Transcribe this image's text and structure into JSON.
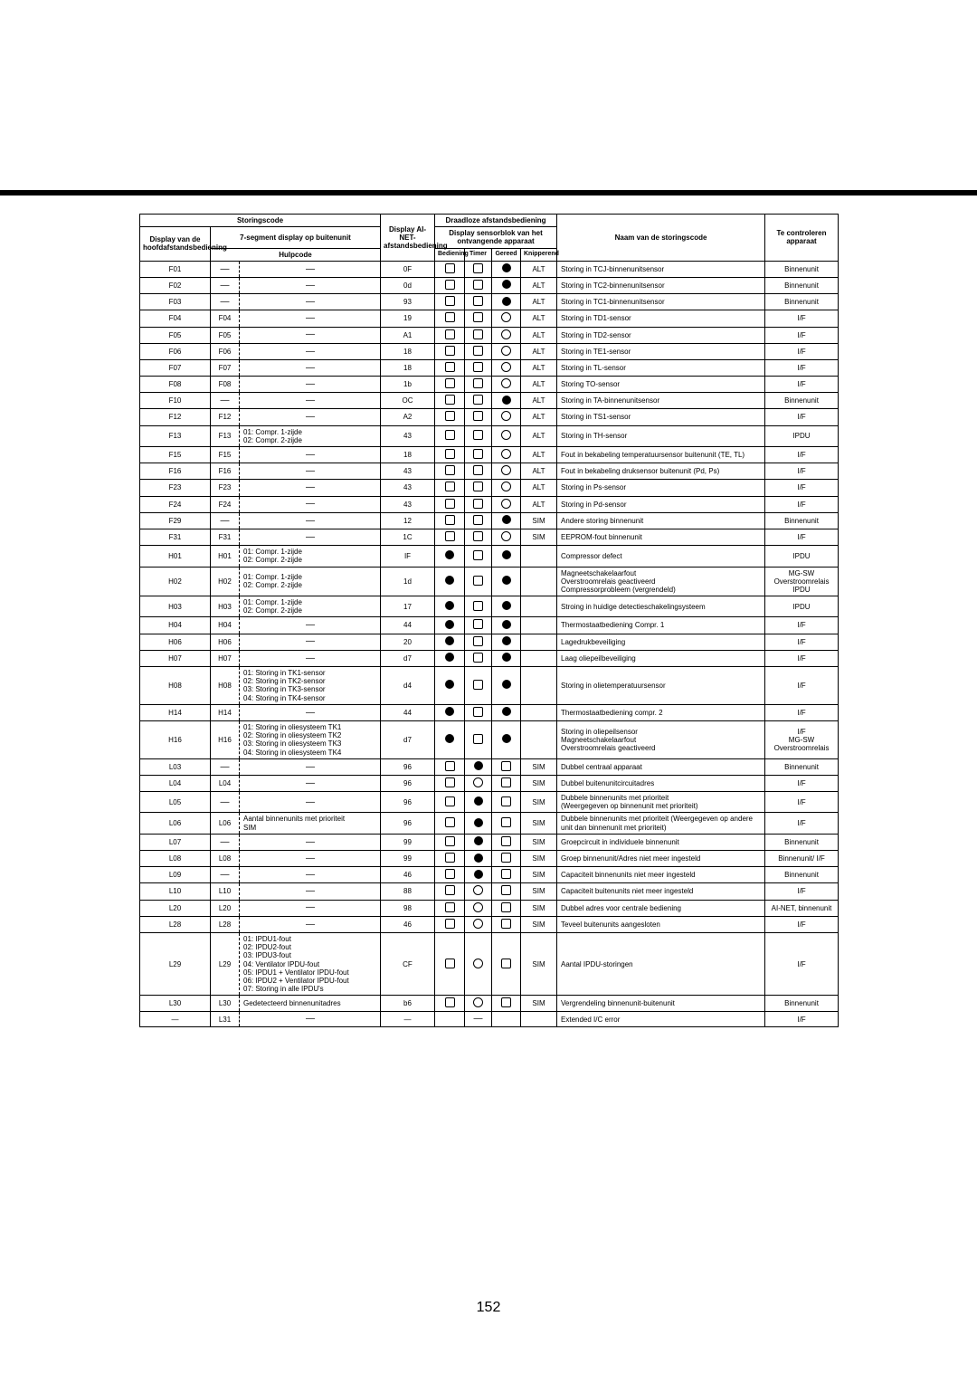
{
  "page_number": "152",
  "headers": {
    "storingscode": "Storingscode",
    "draadloze": "Draadloze afstandsbediening",
    "display_hoofd": "Display van de\nhoofdafstandsbediening",
    "seg7": "7-segment display op buitenunit",
    "ainet": "Display AI-NET-\nafstandsbediening",
    "sensorblok": "Display sensorblok van het\nontvangende apparaat",
    "naam": "Naam van de storingscode",
    "controleren": "Te controleren\napparaat",
    "hulpcode": "Hulpcode",
    "bediening": "Bediening",
    "timer": "Timer",
    "gereed": "Gereed",
    "knipperend": "Knipperend"
  },
  "rows": [
    {
      "c": "F01",
      "s": "—",
      "h": "—",
      "a": "0F",
      "b": "sq",
      "t": "sq",
      "g": "cf",
      "k": "ALT",
      "n": "Storing in TCJ-binnenunitsensor",
      "d": "Binnenunit"
    },
    {
      "c": "F02",
      "s": "—",
      "h": "—",
      "a": "0d",
      "b": "sq",
      "t": "sq",
      "g": "cf",
      "k": "ALT",
      "n": "Storing in TC2-binnenunitsensor",
      "d": "Binnenunit"
    },
    {
      "c": "F03",
      "s": "—",
      "h": "—",
      "a": "93",
      "b": "sq",
      "t": "sq",
      "g": "cf",
      "k": "ALT",
      "n": "Storing in TC1-binnenunitsensor",
      "d": "Binnenunit"
    },
    {
      "c": "F04",
      "s": "F04",
      "h": "—",
      "a": "19",
      "b": "sq",
      "t": "sq",
      "g": "co",
      "k": "ALT",
      "n": "Storing in TD1-sensor",
      "d": "I/F"
    },
    {
      "c": "F05",
      "s": "F05",
      "h": "—",
      "a": "A1",
      "b": "sq",
      "t": "sq",
      "g": "co",
      "k": "ALT",
      "n": "Storing in TD2-sensor",
      "d": "I/F"
    },
    {
      "c": "F06",
      "s": "F06",
      "h": "—",
      "a": "18",
      "b": "sq",
      "t": "sq",
      "g": "co",
      "k": "ALT",
      "n": "Storing in TE1-sensor",
      "d": "I/F"
    },
    {
      "c": "F07",
      "s": "F07",
      "h": "—",
      "a": "18",
      "b": "sq",
      "t": "sq",
      "g": "co",
      "k": "ALT",
      "n": "Storing in TL-sensor",
      "d": "I/F"
    },
    {
      "c": "F08",
      "s": "F08",
      "h": "—",
      "a": "1b",
      "b": "sq",
      "t": "sq",
      "g": "co",
      "k": "ALT",
      "n": "Storing TO-sensor",
      "d": "I/F"
    },
    {
      "c": "F10",
      "s": "—",
      "h": "—",
      "a": "OC",
      "b": "sq",
      "t": "sq",
      "g": "cf",
      "k": "ALT",
      "n": "Storing in TA-binnenunitsensor",
      "d": "Binnenunit"
    },
    {
      "c": "F12",
      "s": "F12",
      "h": "—",
      "a": "A2",
      "b": "sq",
      "t": "sq",
      "g": "co",
      "k": "ALT",
      "n": "Storing in TS1-sensor",
      "d": "I/F"
    },
    {
      "c": "F13",
      "s": "F13",
      "h": "01: Compr. 1-zijde\n02: Compr. 2-zijde",
      "a": "43",
      "b": "sq",
      "t": "sq",
      "g": "co",
      "k": "ALT",
      "n": "Storing in TH-sensor",
      "d": "IPDU"
    },
    {
      "c": "F15",
      "s": "F15",
      "h": "—",
      "a": "18",
      "b": "sq",
      "t": "sq",
      "g": "co",
      "k": "ALT",
      "n": "Fout in bekabeling temperatuursensor buitenunit (TE, TL)",
      "d": "I/F"
    },
    {
      "c": "F16",
      "s": "F16",
      "h": "—",
      "a": "43",
      "b": "sq",
      "t": "sq",
      "g": "co",
      "k": "ALT",
      "n": "Fout in bekabeling druksensor buitenunit (Pd, Ps)",
      "d": "I/F"
    },
    {
      "c": "F23",
      "s": "F23",
      "h": "—",
      "a": "43",
      "b": "sq",
      "t": "sq",
      "g": "co",
      "k": "ALT",
      "n": "Storing in Ps-sensor",
      "d": "I/F"
    },
    {
      "c": "F24",
      "s": "F24",
      "h": "—",
      "a": "43",
      "b": "sq",
      "t": "sq",
      "g": "co",
      "k": "ALT",
      "n": "Storing in Pd-sensor",
      "d": "I/F"
    },
    {
      "c": "F29",
      "s": "—",
      "h": "—",
      "a": "12",
      "b": "sq",
      "t": "sq",
      "g": "cf",
      "k": "SIM",
      "n": "Andere storing binnenunit",
      "d": "Binnenunit"
    },
    {
      "c": "F31",
      "s": "F31",
      "h": "—",
      "a": "1C",
      "b": "sq",
      "t": "sq",
      "g": "co",
      "k": "SIM",
      "n": "EEPROM-fout binnenunit",
      "d": "I/F"
    },
    {
      "c": "H01",
      "s": "H01",
      "h": "01: Compr. 1-zijde\n02: Compr. 2-zijde",
      "a": "IF",
      "b": "cf",
      "t": "sq",
      "g": "cf",
      "k": "",
      "n": "Compressor defect",
      "d": "IPDU"
    },
    {
      "c": "H02",
      "s": "H02",
      "h": "01: Compr. 1-zijde\n02: Compr. 2-zijde",
      "a": "1d",
      "b": "cf",
      "t": "sq",
      "g": "cf",
      "k": "",
      "n": "Magneetschakelaarfout\nOverstroomrelais geactiveerd\nCompressorprobleem (vergrendeld)",
      "d": "MG-SW\nOverstroomrelais\nIPDU"
    },
    {
      "c": "H03",
      "s": "H03",
      "h": "01: Compr. 1-zijde\n02: Compr. 2-zijde",
      "a": "17",
      "b": "cf",
      "t": "sq",
      "g": "cf",
      "k": "",
      "n": "Stroing in huidige detectieschakelingsysteem",
      "d": "IPDU"
    },
    {
      "c": "H04",
      "s": "H04",
      "h": "—",
      "a": "44",
      "b": "cf",
      "t": "sq",
      "g": "cf",
      "k": "",
      "n": "Thermostaatbediening Compr. 1",
      "d": "I/F"
    },
    {
      "c": "H06",
      "s": "H06",
      "h": "—",
      "a": "20",
      "b": "cf",
      "t": "sq",
      "g": "cf",
      "k": "",
      "n": "Lagedrukbeveiliging",
      "d": "I/F"
    },
    {
      "c": "H07",
      "s": "H07",
      "h": "—",
      "a": "d7",
      "b": "cf",
      "t": "sq",
      "g": "cf",
      "k": "",
      "n": "Laag oliepeilbeveiliging",
      "d": "I/F"
    },
    {
      "c": "H08",
      "s": "H08",
      "h": "01: Storing in TK1-sensor\n02: Storing in TK2-sensor\n03: Storing in TK3-sensor\n04: Storing in TK4-sensor",
      "a": "d4",
      "b": "cf",
      "t": "sq",
      "g": "cf",
      "k": "",
      "n": "Storing in olietemperatuursensor",
      "d": "I/F"
    },
    {
      "c": "H14",
      "s": "H14",
      "h": "—",
      "a": "44",
      "b": "cf",
      "t": "sq",
      "g": "cf",
      "k": "",
      "n": "Thermostaatbediening compr. 2",
      "d": "I/F"
    },
    {
      "c": "H16",
      "s": "H16",
      "h": "01: Storing in oliesysteem TK1\n02: Storing in oliesysteem TK2\n03: Storing in oliesysteem TK3\n04: Storing in oliesysteem TK4",
      "a": "d7",
      "b": "cf",
      "t": "sq",
      "g": "cf",
      "k": "",
      "n": "Storing in oliepeilsensor\nMagneetschakelaarfout\nOverstroomrelais geactiveerd",
      "d": "I/F\nMG-SW\nOverstroomrelais"
    },
    {
      "c": "L03",
      "s": "—",
      "h": "—",
      "a": "96",
      "b": "sq",
      "t": "cf",
      "g": "sq",
      "k": "SIM",
      "n": "Dubbel centraal apparaat",
      "d": "Binnenunit"
    },
    {
      "c": "L04",
      "s": "L04",
      "h": "—",
      "a": "96",
      "b": "sq",
      "t": "co",
      "g": "sq",
      "k": "SIM",
      "n": "Dubbel buitenunitcircuitadres",
      "d": "I/F"
    },
    {
      "c": "L05",
      "s": "—",
      "h": "—",
      "a": "96",
      "b": "sq",
      "t": "cf",
      "g": "sq",
      "k": "SIM",
      "n": "Dubbele binnenunits met prioriteit\n(Weergegeven op binnenunit met prioriteit)",
      "d": "I/F"
    },
    {
      "c": "L06",
      "s": "L06",
      "h": "Aantal binnenunits met prioriteit\nSIM",
      "a": "96",
      "b": "sq",
      "t": "cf",
      "g": "sq",
      "k": "SIM",
      "n": "Dubbele binnenunits met prioriteit (Weergegeven op andere unit dan binnenunit met prioriteit)",
      "d": "I/F"
    },
    {
      "c": "L07",
      "s": "—",
      "h": "—",
      "a": "99",
      "b": "sq",
      "t": "cf",
      "g": "sq",
      "k": "SIM",
      "n": "Groepcircuit in individuele binnenunit",
      "d": "Binnenunit"
    },
    {
      "c": "L08",
      "s": "L08",
      "h": "—",
      "a": "99",
      "b": "sq",
      "t": "cf",
      "g": "sq",
      "k": "SIM",
      "n": "Groep binnenunit/Adres niet meer ingesteld",
      "d": "Binnenunit/ I/F"
    },
    {
      "c": "L09",
      "s": "—",
      "h": "—",
      "a": "46",
      "b": "sq",
      "t": "cf",
      "g": "sq",
      "k": "SIM",
      "n": "Capaciteit binnenunits niet meer ingesteld",
      "d": "Binnenunit"
    },
    {
      "c": "L10",
      "s": "L10",
      "h": "—",
      "a": "88",
      "b": "sq",
      "t": "co",
      "g": "sq",
      "k": "SIM",
      "n": "Capaciteit buitenunits niet meer ingesteld",
      "d": "I/F"
    },
    {
      "c": "L20",
      "s": "L20",
      "h": "—",
      "a": "98",
      "b": "sq",
      "t": "co",
      "g": "sq",
      "k": "SIM",
      "n": "Dubbel adres voor centrale bediening",
      "d": "AI-NET, binnenunit"
    },
    {
      "c": "L28",
      "s": "L28",
      "h": "—",
      "a": "46",
      "b": "sq",
      "t": "co",
      "g": "sq",
      "k": "SIM",
      "n": "Teveel buitenunits aangesloten",
      "d": "I/F"
    },
    {
      "c": "L29",
      "s": "L29",
      "h": "01: IPDU1-fout\n02: IPDU2-fout\n03: IPDU3-fout\n04: Ventilator IPDU-fout\n05: IPDU1 + Ventilator IPDU-fout\n06: IPDU2 + Ventilator IPDU-fout\n07: Storing in alle IPDU's",
      "a": "CF",
      "b": "sq",
      "t": "co",
      "g": "sq",
      "k": "SIM",
      "n": "Aantal IPDU-storingen",
      "d": "I/F"
    },
    {
      "c": "L30",
      "s": "L30",
      "h": "Gedetecteerd binnenunitadres",
      "a": "b6",
      "b": "sq",
      "t": "co",
      "g": "sq",
      "k": "SIM",
      "n": "Vergrendeling binnenunit-buitenunit",
      "d": "Binnenunit"
    },
    {
      "c": "—",
      "s": "L31",
      "h": "—",
      "a": "—",
      "b": "",
      "t": "—",
      "g": "",
      "k": "",
      "n": "Extended I/C error",
      "d": "I/F"
    }
  ]
}
